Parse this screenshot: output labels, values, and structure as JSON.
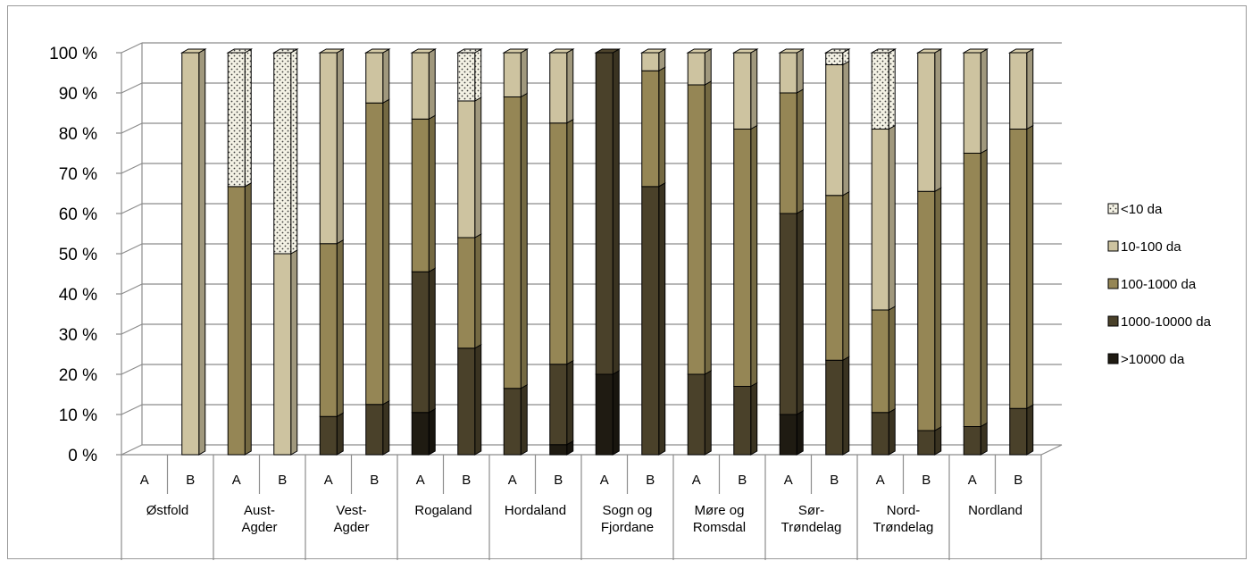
{
  "chart_data": {
    "type": "bar",
    "stacked": true,
    "percent_stacked": true,
    "three_d": true,
    "grid": true,
    "legend_position": "right",
    "ylim": [
      0,
      100
    ],
    "ytick_labels": [
      "0 %",
      "10 %",
      "20 %",
      "30 %",
      "40 %",
      "50 %",
      "60 %",
      "70 %",
      "80 %",
      "90 %",
      "100 %"
    ],
    "groups": [
      {
        "label": "Østfold",
        "categories": [
          "A",
          "B"
        ]
      },
      {
        "label": "Aust-\nAgder",
        "categories": [
          "A",
          "B"
        ]
      },
      {
        "label": "Vest-\nAgder",
        "categories": [
          "A",
          "B"
        ]
      },
      {
        "label": "Rogaland",
        "categories": [
          "A",
          "B"
        ]
      },
      {
        "label": "Hordaland",
        "categories": [
          "A",
          "B"
        ]
      },
      {
        "label": "Sogn og\nFjordane",
        "categories": [
          "A",
          "B"
        ]
      },
      {
        "label": "Møre og\nRomsdal",
        "categories": [
          "A",
          "B"
        ]
      },
      {
        "label": "Sør-\nTrøndelag",
        "categories": [
          "A",
          "B"
        ]
      },
      {
        "label": "Nord-\nTrøndelag",
        "categories": [
          "A",
          "B"
        ]
      },
      {
        "label": "Nordland",
        "categories": [
          "A",
          "B"
        ]
      }
    ],
    "series": [
      {
        "name": ">10000 da",
        "color": "#1f1b12",
        "values": [
          0,
          0,
          0,
          0,
          0,
          0,
          10.5,
          0,
          0,
          2.5,
          20,
          0,
          0,
          0,
          10,
          0,
          0,
          0,
          0,
          0
        ]
      },
      {
        "name": "1000-10000 da",
        "color": "#4a412a",
        "values": [
          0,
          0,
          0,
          0,
          9.5,
          12.5,
          35,
          26.5,
          16.5,
          20,
          80,
          66.7,
          20,
          17,
          50,
          23.5,
          10.5,
          6,
          7,
          11.5
        ]
      },
      {
        "name": "100-1000 da",
        "color": "#958655",
        "values": [
          0,
          0,
          66.7,
          0,
          43,
          75,
          38,
          27.5,
          72.5,
          60,
          0,
          28.8,
          72,
          64,
          30,
          41,
          25.5,
          59.5,
          68,
          69.5
        ]
      },
      {
        "name": "10-100 da",
        "color": "#cdc3a0",
        "values": [
          0,
          100,
          0,
          50,
          47.5,
          12.5,
          16.5,
          34,
          11,
          17.5,
          0,
          4.5,
          8,
          19,
          10,
          32.5,
          45,
          34.5,
          25,
          19
        ]
      },
      {
        "name": "<10 da",
        "color": "#f3f1e4",
        "pattern": "dots",
        "values": [
          0,
          0,
          33.3,
          50,
          0,
          0,
          0,
          12,
          0,
          0,
          0,
          0,
          0,
          0,
          0,
          3,
          19,
          0,
          0,
          0
        ]
      }
    ]
  }
}
